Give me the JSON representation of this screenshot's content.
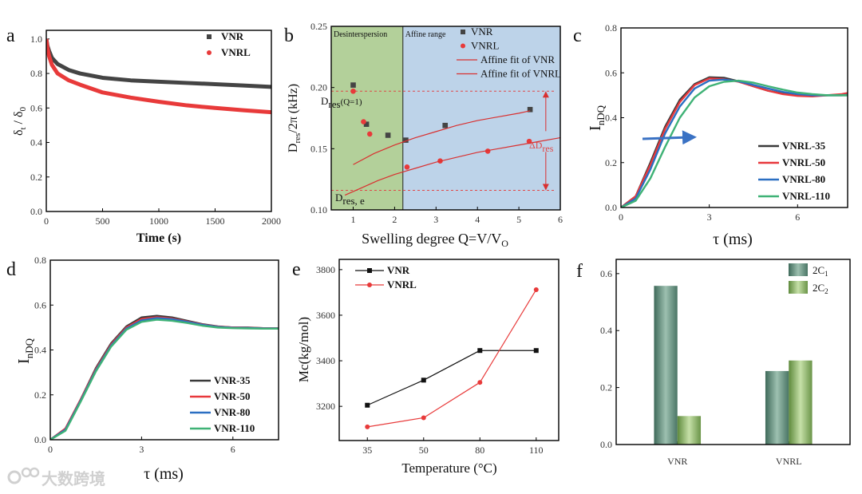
{
  "panel_letters": [
    "a",
    "b",
    "c",
    "d",
    "e",
    "f"
  ],
  "watermark": "大数跨境",
  "axis_labels": {
    "a": {
      "x": "Time (s)",
      "y_main": "δ",
      "y_sub1": "t",
      "y_mid": " / δ",
      "y_sub2": "0"
    },
    "b": {
      "x_main": "Swelling degree Q=V/V",
      "x_sub": "O",
      "y_main": "D",
      "y_sub": "res",
      "y_rest": "/2π (kHz)"
    },
    "c": {
      "x": "τ (ms)",
      "y_main": "I",
      "y_sub": "nDQ"
    },
    "d": {
      "x": "τ (ms)",
      "y_main": "I",
      "y_sub": "nDQ"
    },
    "e": {
      "x": "Temperature (°C)",
      "y": "Mc(kg/mol)"
    }
  },
  "annotations_b": {
    "dres_q1": {
      "main": "D",
      "sub": "res",
      "rest": "(Q=1)"
    },
    "dres_e": {
      "main": "D",
      "sub": "res, e"
    },
    "delta_dres": {
      "main": "ΔD",
      "sub": "res"
    }
  },
  "chart_data": [
    {
      "panel": "a",
      "type": "line",
      "xlabel": "Time (s)",
      "ylabel": "δt / δ0",
      "xlim": [
        0,
        2000
      ],
      "ylim": [
        0,
        1.05
      ],
      "xticks": [
        0,
        500,
        1000,
        1500,
        2000
      ],
      "xtick_labels": [
        "0",
        "500",
        "1000",
        "1500",
        "2000"
      ],
      "yticks": [
        0,
        0.2,
        0.4,
        0.6,
        0.8,
        1.0
      ],
      "ytick_labels": [
        "0.0",
        "0.2",
        "0.4",
        "0.6",
        "0.8",
        "1.0"
      ],
      "legend": "top-right",
      "x": [
        0,
        10,
        25,
        50,
        100,
        200,
        300,
        500,
        750,
        1000,
        1250,
        1500,
        1750,
        2000
      ],
      "series": [
        {
          "name": "VNR",
          "color": "#444444",
          "marker": "square",
          "values": [
            1.0,
            0.96,
            0.93,
            0.89,
            0.855,
            0.82,
            0.8,
            0.775,
            0.76,
            0.752,
            0.745,
            0.738,
            0.73,
            0.722
          ]
        },
        {
          "name": "VNRL",
          "color": "#e83a3a",
          "marker": "circle",
          "values": [
            1.0,
            0.95,
            0.9,
            0.85,
            0.8,
            0.76,
            0.735,
            0.69,
            0.66,
            0.636,
            0.615,
            0.6,
            0.587,
            0.575
          ]
        }
      ]
    },
    {
      "panel": "b",
      "type": "scatter",
      "xlabel": "Swelling degree Q=V/VO",
      "ylabel": "Dres/2π (kHz)",
      "xlim": [
        0.47,
        6
      ],
      "ylim": [
        0.1,
        0.25
      ],
      "xticks": [
        1,
        2,
        3,
        4,
        5,
        6
      ],
      "xtick_labels": [
        "1",
        "2",
        "3",
        "4",
        "5",
        "6"
      ],
      "yticks": [
        0.1,
        0.15,
        0.2,
        0.25
      ],
      "ytick_labels": [
        "0.10",
        "0.15",
        "0.20",
        "0.25"
      ],
      "legend": "top-right",
      "regions": [
        {
          "label": "Desinterspersion",
          "from": 0.47,
          "to": 2.2,
          "color": "#b3d09a"
        },
        {
          "label": "Affine range",
          "from": 2.2,
          "to": 6,
          "color": "#bdd3e9"
        }
      ],
      "series": [
        {
          "name": "VNR",
          "color": "#444444",
          "marker": "square",
          "x": [
            1.0,
            1.32,
            1.84,
            2.27,
            3.22,
            5.27
          ],
          "values": [
            0.202,
            0.17,
            0.161,
            0.157,
            0.169,
            0.182
          ]
        },
        {
          "name": "VNRL",
          "color": "#e83a3a",
          "marker": "circle",
          "x": [
            1.0,
            1.25,
            1.4,
            2.3,
            3.1,
            4.25,
            5.25
          ],
          "values": [
            0.197,
            0.172,
            0.162,
            0.135,
            0.14,
            0.148,
            0.156
          ]
        },
        {
          "name": "Affine fit of VNR",
          "color": "#d93030",
          "line": true,
          "x": [
            1.0,
            1.5,
            2.0,
            2.5,
            3.0,
            3.5,
            4.0,
            4.5,
            5.0,
            5.27
          ],
          "values": [
            0.137,
            0.146,
            0.153,
            0.159,
            0.164,
            0.169,
            0.173,
            0.176,
            0.179,
            0.181
          ]
        },
        {
          "name": "Affine fit of VNRL",
          "color": "#d93030",
          "line": true,
          "x": [
            0.8,
            1.2,
            1.6,
            2.0,
            2.5,
            3.0,
            3.5,
            4.0,
            4.5,
            5.0,
            5.5,
            6.0
          ],
          "values": [
            0.112,
            0.118,
            0.124,
            0.129,
            0.134,
            0.139,
            0.143,
            0.147,
            0.15,
            0.153,
            0.156,
            0.159
          ]
        }
      ],
      "reference_lines": [
        0.197,
        0.116
      ],
      "delta_arrow_x": 5.65
    },
    {
      "panel": "c",
      "type": "line",
      "xlabel": "τ (ms)",
      "ylabel": "InDQ",
      "xlim": [
        0,
        7.7
      ],
      "ylim": [
        0,
        0.8
      ],
      "xticks": [
        0,
        3,
        6
      ],
      "xtick_labels": [
        "0",
        "3",
        "6"
      ],
      "yticks": [
        0,
        0.2,
        0.4,
        0.6,
        0.8
      ],
      "ytick_labels": [
        "0.0",
        "0.2",
        "0.4",
        "0.6",
        "0.8"
      ],
      "legend": "bottom-right",
      "x": [
        0,
        0.5,
        1,
        1.5,
        2,
        2.5,
        3,
        3.5,
        4,
        4.5,
        5,
        5.5,
        6,
        6.5,
        7,
        7.5,
        7.7
      ],
      "series": [
        {
          "name": "VNRL-35",
          "color": "#3a3a3a",
          "values": [
            0,
            0.05,
            0.2,
            0.36,
            0.48,
            0.55,
            0.58,
            0.578,
            0.562,
            0.54,
            0.52,
            0.508,
            0.5,
            0.498,
            0.5,
            0.5,
            0.5
          ]
        },
        {
          "name": "VNRL-50",
          "color": "#e8383c",
          "values": [
            0,
            0.05,
            0.19,
            0.35,
            0.47,
            0.545,
            0.575,
            0.572,
            0.56,
            0.54,
            0.52,
            0.505,
            0.497,
            0.495,
            0.5,
            0.505,
            0.51
          ]
        },
        {
          "name": "VNRL-80",
          "color": "#2b6fc2",
          "values": [
            0,
            0.04,
            0.17,
            0.33,
            0.45,
            0.53,
            0.565,
            0.57,
            0.562,
            0.546,
            0.53,
            0.515,
            0.505,
            0.5,
            0.5,
            0.5,
            0.502
          ]
        },
        {
          "name": "VNRL-110",
          "color": "#3fb276",
          "values": [
            0,
            0.03,
            0.13,
            0.27,
            0.4,
            0.49,
            0.54,
            0.56,
            0.565,
            0.556,
            0.54,
            0.525,
            0.512,
            0.505,
            0.5,
            0.5,
            0.5
          ]
        }
      ]
    },
    {
      "panel": "d",
      "type": "line",
      "xlabel": "τ (ms)",
      "ylabel": "InDQ",
      "xlim": [
        0,
        7.5
      ],
      "ylim": [
        0,
        0.8
      ],
      "xticks": [
        0,
        3,
        6
      ],
      "xtick_labels": [
        "0",
        "3",
        "6"
      ],
      "yticks": [
        0,
        0.2,
        0.4,
        0.6,
        0.8
      ],
      "ytick_labels": [
        "0.0",
        "0.2",
        "0.4",
        "0.6",
        "0.8"
      ],
      "legend": "bottom-right",
      "x": [
        0,
        0.5,
        1,
        1.5,
        2,
        2.5,
        3,
        3.5,
        4,
        4.5,
        5,
        5.5,
        6,
        6.5,
        7,
        7.5
      ],
      "series": [
        {
          "name": "VNR-35",
          "color": "#3a3a3a",
          "values": [
            0,
            0.05,
            0.18,
            0.32,
            0.43,
            0.505,
            0.545,
            0.552,
            0.545,
            0.53,
            0.515,
            0.505,
            0.5,
            0.5,
            0.497,
            0.497
          ]
        },
        {
          "name": "VNR-50",
          "color": "#e8383c",
          "values": [
            0,
            0.05,
            0.18,
            0.315,
            0.425,
            0.5,
            0.538,
            0.546,
            0.54,
            0.527,
            0.513,
            0.504,
            0.5,
            0.499,
            0.497,
            0.497
          ]
        },
        {
          "name": "VNR-80",
          "color": "#2b6fc2",
          "values": [
            0,
            0.045,
            0.175,
            0.31,
            0.42,
            0.495,
            0.532,
            0.542,
            0.537,
            0.525,
            0.512,
            0.503,
            0.499,
            0.498,
            0.496,
            0.496
          ]
        },
        {
          "name": "VNR-110",
          "color": "#3fb276",
          "values": [
            0,
            0.04,
            0.17,
            0.305,
            0.415,
            0.49,
            0.525,
            0.535,
            0.53,
            0.52,
            0.508,
            0.5,
            0.497,
            0.496,
            0.495,
            0.495
          ]
        }
      ]
    },
    {
      "panel": "e",
      "type": "line",
      "xlabel": "Temperature (°C)",
      "ylabel": "Mc(kg/mol)",
      "categories": [
        "35",
        "50",
        "80",
        "110"
      ],
      "xlim": [
        -0.5,
        3.4
      ],
      "ylim": [
        3050,
        3845
      ],
      "xticks": [
        0,
        1,
        2,
        3
      ],
      "xtick_labels": [
        "35",
        "50",
        "80",
        "110"
      ],
      "yticks": [
        3200,
        3400,
        3600,
        3800
      ],
      "ytick_labels": [
        "3200",
        "3400",
        "3600",
        "3800"
      ],
      "legend": "top-left",
      "x": [
        0,
        1,
        2,
        3
      ],
      "series": [
        {
          "name": "VNR",
          "color": "#111111",
          "marker": "square",
          "line": true,
          "values": [
            3205,
            3315,
            3445,
            3445
          ]
        },
        {
          "name": "VNRL",
          "color": "#e83a3a",
          "marker": "circle",
          "line": true,
          "values": [
            3110,
            3150,
            3305,
            3712
          ]
        }
      ]
    },
    {
      "panel": "f",
      "type": "bar",
      "categories": [
        "VNR",
        "VNRL"
      ],
      "xlim": [
        -0.55,
        1.55
      ],
      "ylim": [
        0,
        0.65
      ],
      "xticks": [
        0,
        1
      ],
      "xtick_labels": [
        "VNR",
        "VNRL"
      ],
      "yticks": [
        0,
        0.2,
        0.4,
        0.6
      ],
      "ytick_labels": [
        "0.0",
        "0.2",
        "0.4",
        "0.6"
      ],
      "legend": "top-right",
      "series": [
        {
          "name": "2C1",
          "label_main": "2C",
          "label_sub": "1",
          "color": "#8fb4a4",
          "edge": "#3f6a5a",
          "values": [
            0.557,
            0.258
          ]
        },
        {
          "name": "2C2",
          "label_main": "2C",
          "label_sub": "2",
          "color": "#bcd79f",
          "edge": "#5e8a3c",
          "values": [
            0.1,
            0.295
          ]
        }
      ]
    }
  ]
}
